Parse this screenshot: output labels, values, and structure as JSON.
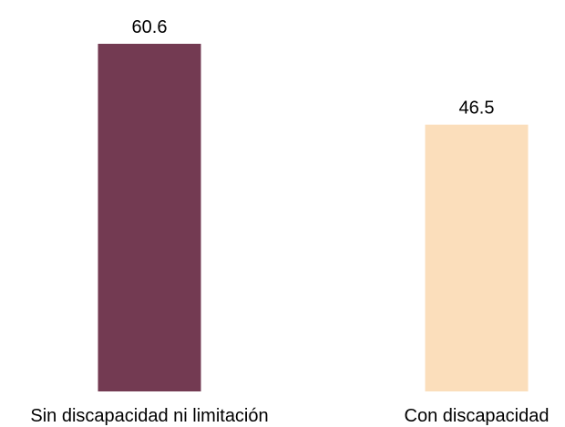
{
  "chart_data": {
    "type": "bar",
    "categories": [
      "Sin discapacidad ni limitación",
      "Con discapacidad"
    ],
    "values": [
      60.6,
      46.5
    ],
    "value_labels": [
      "60.6",
      "46.5"
    ],
    "colors": [
      "#733A52",
      "#FBDEBB"
    ],
    "title": "",
    "xlabel": "",
    "ylabel": "",
    "ylim": [
      0,
      60.6
    ],
    "grid": false,
    "legend": "none"
  }
}
